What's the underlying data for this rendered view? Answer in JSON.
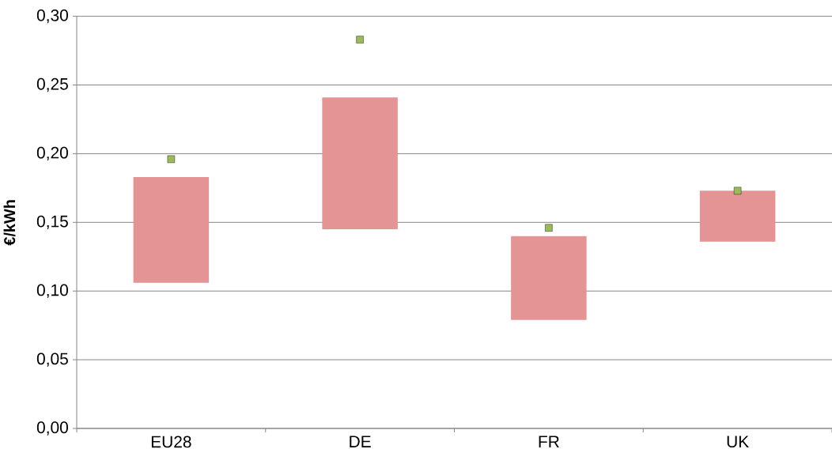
{
  "chart_data": {
    "type": "bar",
    "ylabel": "€/kWh",
    "categories": [
      "EU28",
      "DE",
      "FR",
      "UK"
    ],
    "series": [
      {
        "color": "#e49494",
        "base": [
          0.106,
          0.145,
          0.079,
          0.136
        ],
        "values": [
          0.077,
          0.096,
          0.061,
          0.037
        ]
      },
      {
        "type": "scatter",
        "color": "#9bbb59",
        "marker": "square",
        "x": [
          "EU28",
          "DE",
          "FR",
          "UK"
        ],
        "values": [
          0.196,
          0.283,
          0.146,
          0.173
        ]
      }
    ],
    "ylim": [
      0,
      0.3
    ],
    "yticks": [
      {
        "value": 0,
        "label": "0,00"
      },
      {
        "value": 0.05,
        "label": "0,05"
      },
      {
        "value": 0.1,
        "label": "0,10"
      },
      {
        "value": 0.15,
        "label": "0,15"
      },
      {
        "value": 0.2,
        "label": "0,20"
      },
      {
        "value": 0.25,
        "label": "0,25"
      },
      {
        "value": 0.3,
        "label": "0,30"
      }
    ],
    "grid": "y"
  }
}
